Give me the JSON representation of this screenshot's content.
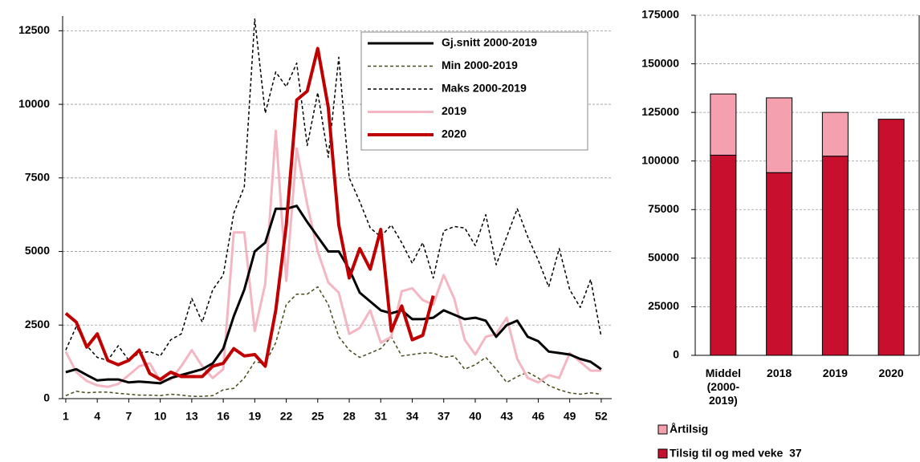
{
  "chart_data": [
    {
      "type": "line",
      "x": [
        1,
        2,
        3,
        4,
        5,
        6,
        7,
        8,
        9,
        10,
        11,
        12,
        13,
        14,
        15,
        16,
        17,
        18,
        19,
        20,
        21,
        22,
        23,
        24,
        25,
        26,
        27,
        28,
        29,
        30,
        31,
        32,
        33,
        34,
        35,
        36,
        37,
        38,
        39,
        40,
        41,
        42,
        43,
        44,
        45,
        46,
        47,
        48,
        49,
        50,
        51,
        52
      ],
      "xlim": [
        0.7,
        53
      ],
      "xticks": [
        1,
        4,
        7,
        10,
        13,
        16,
        19,
        22,
        25,
        28,
        31,
        34,
        37,
        40,
        43,
        46,
        49,
        52
      ],
      "ylim": [
        0,
        13000
      ],
      "yticks": [
        0,
        2500,
        5000,
        7500,
        10000,
        12500
      ],
      "grid": true,
      "series": [
        {
          "name": "Gj.snitt 2000-2019",
          "color": "#000000",
          "linestyle": "solid",
          "values": [
            900,
            1000,
            800,
            620,
            650,
            650,
            550,
            580,
            550,
            520,
            700,
            800,
            900,
            1000,
            1200,
            1700,
            2800,
            3700,
            5000,
            5300,
            6450,
            6450,
            6550,
            6000,
            5500,
            5000,
            5000,
            4400,
            3600,
            3300,
            3000,
            2900,
            3000,
            2700,
            2700,
            2750,
            3000,
            2850,
            2700,
            2750,
            2650,
            2100,
            2500,
            2650,
            2100,
            1950,
            1600,
            1550,
            1500,
            1350,
            1250,
            1000
          ]
        },
        {
          "name": "Min 2000-2019",
          "color": "#4a4a1a",
          "linestyle": "dashed",
          "values": [
            100,
            250,
            200,
            220,
            220,
            180,
            150,
            120,
            120,
            100,
            150,
            120,
            80,
            80,
            100,
            300,
            350,
            700,
            1250,
            1200,
            1900,
            3200,
            3550,
            3550,
            3800,
            3200,
            2100,
            1650,
            1400,
            1550,
            1700,
            2100,
            1450,
            1500,
            1550,
            1550,
            1400,
            1450,
            1000,
            1150,
            1400,
            1000,
            550,
            750,
            900,
            700,
            450,
            300,
            200,
            150,
            200,
            150
          ]
        },
        {
          "name": "Maks 2000-2019",
          "color": "#000000",
          "linestyle": "dashed",
          "values": [
            1650,
            2450,
            1800,
            1400,
            1300,
            1800,
            1300,
            1550,
            1600,
            1450,
            2000,
            2200,
            3400,
            2600,
            3700,
            4200,
            6300,
            7200,
            12900,
            9700,
            11100,
            10600,
            11400,
            8600,
            10400,
            8200,
            11600,
            7500,
            6700,
            5800,
            5500,
            5900,
            5300,
            4600,
            5300,
            4100,
            5700,
            5850,
            5800,
            5200,
            6250,
            4550,
            5500,
            6450,
            5500,
            4700,
            3800,
            5100,
            3700,
            3100,
            4050,
            2100
          ]
        },
        {
          "name": "2019",
          "color": "#f4b6c2",
          "linestyle": "solid",
          "values": [
            1600,
            900,
            600,
            450,
            400,
            500,
            800,
            1100,
            1200,
            600,
            650,
            1100,
            1650,
            1100,
            700,
            1000,
            5650,
            5650,
            2300,
            3900,
            9100,
            4000,
            8500,
            6600,
            5000,
            3950,
            3600,
            2200,
            2400,
            3000,
            1900,
            2100,
            3650,
            3750,
            3350,
            3200,
            4200,
            3400,
            2000,
            1500,
            2100,
            2200,
            2750,
            1350,
            700,
            550,
            800,
            700,
            1550,
            1250,
            950,
            950
          ]
        },
        {
          "name": "2020",
          "color": "#c00000",
          "linestyle": "solid",
          "values": [
            2900,
            2600,
            1750,
            2200,
            1300,
            1150,
            1300,
            1650,
            850,
            650,
            900,
            750,
            750,
            750,
            1100,
            1200,
            1700,
            1450,
            1500,
            1100,
            3000,
            5900,
            10150,
            10450,
            11900,
            9900,
            5900,
            4100,
            5100,
            4400,
            5750,
            2300,
            3150,
            2000,
            2150,
            3500,
            null,
            null,
            null,
            null,
            null,
            null,
            null,
            null,
            null,
            null,
            null,
            null,
            null,
            null,
            null,
            null
          ]
        }
      ]
    },
    {
      "type": "bar",
      "stacked": true,
      "categories": [
        "Middel (2000-2019)",
        "2018",
        "2019",
        "2020"
      ],
      "ylim": [
        0,
        175000
      ],
      "yticks": [
        0,
        25000,
        50000,
        75000,
        100000,
        125000,
        150000,
        175000
      ],
      "grid": true,
      "series": [
        {
          "name": "Årtilsig",
          "color": "#f4a0ae",
          "values": [
            31500,
            38500,
            22500,
            null
          ]
        },
        {
          "name": "Tilsig til og med veke  37",
          "color": "#c8102e",
          "values": [
            103000,
            94000,
            102500,
            121500
          ]
        }
      ]
    }
  ]
}
